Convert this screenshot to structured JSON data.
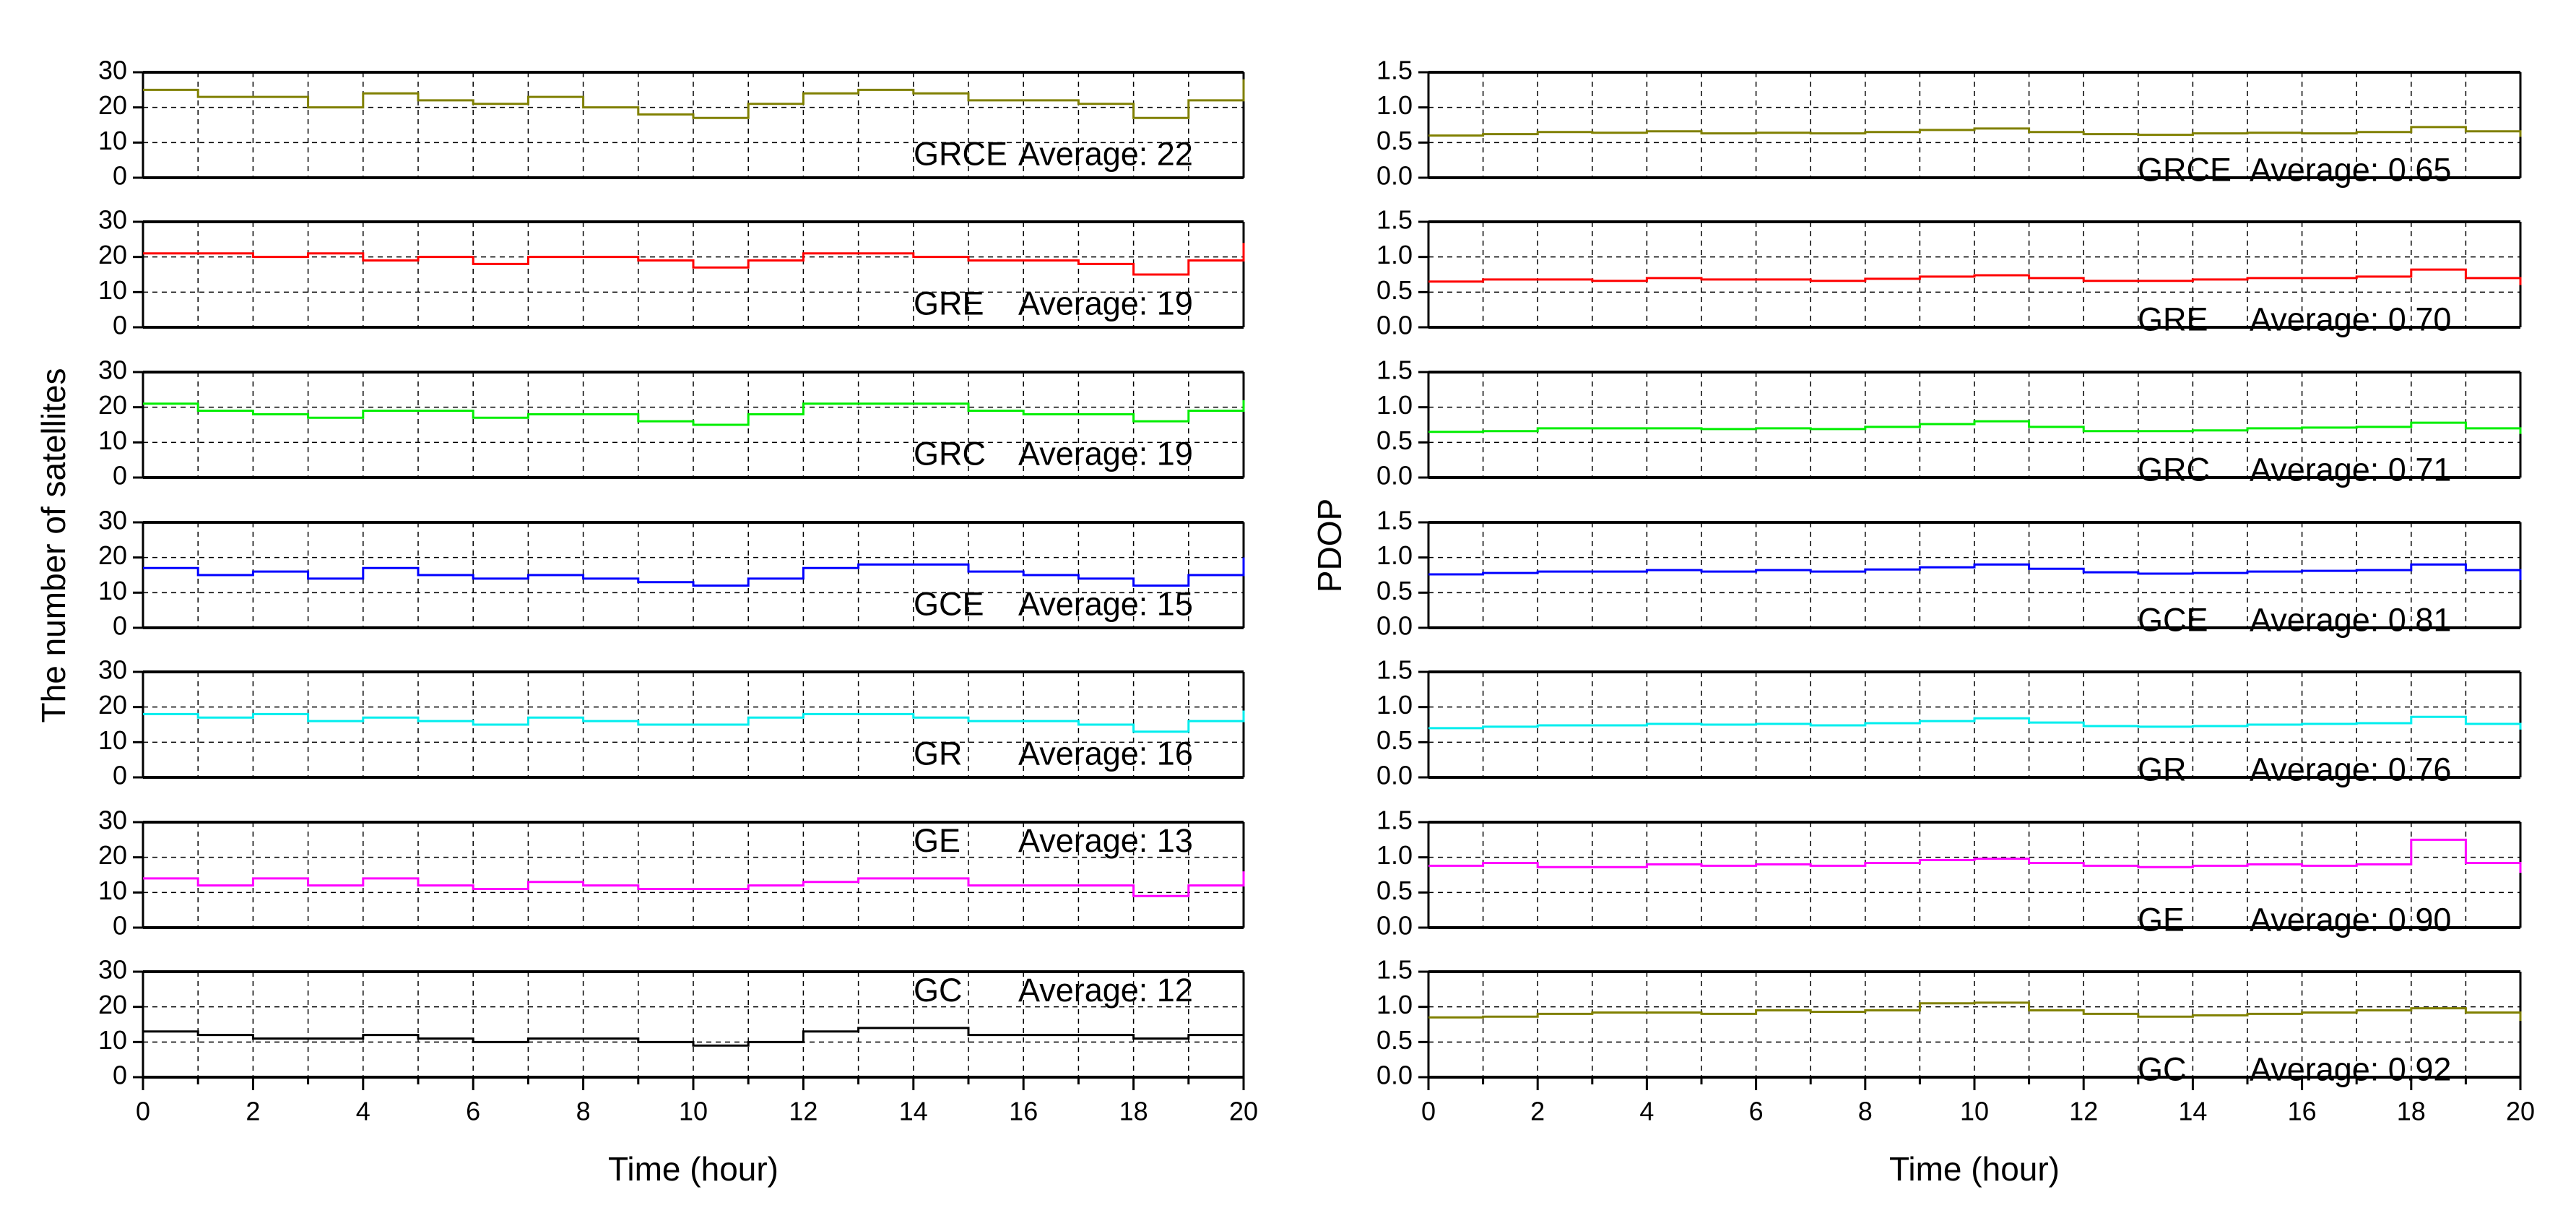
{
  "chart_data": [
    {
      "type": "line",
      "ylabel": "The number of satellites",
      "xlabel": "Time (hour)",
      "xlim": [
        0,
        20
      ],
      "x_ticks": [
        "0",
        "2",
        "4",
        "6",
        "8",
        "10",
        "12",
        "14",
        "16",
        "18",
        "20"
      ],
      "ylim": [
        0,
        30
      ],
      "y_ticks": [
        "0",
        "10",
        "20",
        "30"
      ],
      "panels": [
        {
          "system": "GRCE",
          "color": "#808000",
          "average_text": "Average: 22",
          "average": 22,
          "x": [
            0,
            1,
            2,
            3,
            4,
            5,
            6,
            7,
            8,
            9,
            10,
            11,
            12,
            13,
            14,
            15,
            16,
            17,
            18,
            19,
            20
          ],
          "values": [
            25,
            23,
            23,
            20,
            24,
            22,
            21,
            23,
            20,
            18,
            17,
            21,
            24,
            25,
            24,
            22,
            22,
            21,
            17,
            22,
            28
          ]
        },
        {
          "system": "GRE",
          "color": "#ff0000",
          "average_text": "Average: 19",
          "average": 19,
          "x": [
            0,
            1,
            2,
            3,
            4,
            5,
            6,
            7,
            8,
            9,
            10,
            11,
            12,
            13,
            14,
            15,
            16,
            17,
            18,
            19,
            20
          ],
          "values": [
            21,
            21,
            20,
            21,
            19,
            20,
            18,
            20,
            20,
            19,
            17,
            19,
            21,
            21,
            20,
            19,
            19,
            18,
            15,
            19,
            24
          ]
        },
        {
          "system": "GRC",
          "color": "#00ee00",
          "average_text": "Average: 19",
          "average": 19,
          "x": [
            0,
            1,
            2,
            3,
            4,
            5,
            6,
            7,
            8,
            9,
            10,
            11,
            12,
            13,
            14,
            15,
            16,
            17,
            18,
            19,
            20
          ],
          "values": [
            21,
            19,
            18,
            17,
            19,
            19,
            17,
            18,
            18,
            16,
            15,
            18,
            21,
            21,
            21,
            19,
            18,
            18,
            16,
            19,
            22
          ]
        },
        {
          "system": "GCE",
          "color": "#0000ff",
          "average_text": "Average: 15",
          "average": 15,
          "x": [
            0,
            1,
            2,
            3,
            4,
            5,
            6,
            7,
            8,
            9,
            10,
            11,
            12,
            13,
            14,
            15,
            16,
            17,
            18,
            19,
            20
          ],
          "values": [
            17,
            15,
            16,
            14,
            17,
            15,
            14,
            15,
            14,
            13,
            12,
            14,
            17,
            18,
            18,
            16,
            15,
            14,
            12,
            15,
            20
          ]
        },
        {
          "system": "GR",
          "color": "#00eeee",
          "average_text": "Average: 16",
          "average": 16,
          "x": [
            0,
            1,
            2,
            3,
            4,
            5,
            6,
            7,
            8,
            9,
            10,
            11,
            12,
            13,
            14,
            15,
            16,
            17,
            18,
            19,
            20
          ],
          "values": [
            18,
            17,
            18,
            16,
            17,
            16,
            15,
            17,
            16,
            15,
            15,
            17,
            18,
            18,
            17,
            16,
            16,
            15,
            13,
            16,
            19
          ]
        },
        {
          "system": "GE",
          "color": "#ff00ff",
          "average_text": "Average: 13",
          "average": 13,
          "x": [
            0,
            1,
            2,
            3,
            4,
            5,
            6,
            7,
            8,
            9,
            10,
            11,
            12,
            13,
            14,
            15,
            16,
            17,
            18,
            19,
            20
          ],
          "values": [
            14,
            12,
            14,
            12,
            14,
            12,
            11,
            13,
            12,
            11,
            11,
            12,
            13,
            14,
            14,
            12,
            12,
            12,
            9,
            12,
            16
          ]
        },
        {
          "system": "GC",
          "color": "#000000",
          "average_text": "Average: 12",
          "average": 12,
          "x": [
            0,
            1,
            2,
            3,
            4,
            5,
            6,
            7,
            8,
            9,
            10,
            11,
            12,
            13,
            14,
            15,
            16,
            17,
            18,
            19,
            20
          ],
          "values": [
            13,
            12,
            11,
            11,
            12,
            11,
            10,
            11,
            11,
            10,
            9,
            10,
            13,
            14,
            14,
            12,
            12,
            12,
            11,
            12,
            14
          ]
        }
      ]
    },
    {
      "type": "line",
      "ylabel": "PDOP",
      "xlabel": "Time (hour)",
      "xlim": [
        0,
        20
      ],
      "x_ticks": [
        "0",
        "2",
        "4",
        "6",
        "8",
        "10",
        "12",
        "14",
        "16",
        "18",
        "20"
      ],
      "ylim": [
        0,
        1.5
      ],
      "y_ticks": [
        "0.0",
        "0.5",
        "1.0",
        "1.5"
      ],
      "panels": [
        {
          "system": "GRCE",
          "color": "#808000",
          "average_text": "Average: 0.65",
          "average": 0.65,
          "x": [
            0,
            1,
            2,
            3,
            4,
            5,
            6,
            7,
            8,
            9,
            10,
            11,
            12,
            13,
            14,
            15,
            16,
            17,
            18,
            19,
            20
          ],
          "values": [
            0.6,
            0.62,
            0.65,
            0.64,
            0.66,
            0.63,
            0.64,
            0.63,
            0.65,
            0.68,
            0.7,
            0.65,
            0.62,
            0.61,
            0.63,
            0.64,
            0.63,
            0.65,
            0.72,
            0.66,
            0.58
          ]
        },
        {
          "system": "GRE",
          "color": "#ff0000",
          "average_text": "Average: 0.70",
          "average": 0.7,
          "x": [
            0,
            1,
            2,
            3,
            4,
            5,
            6,
            7,
            8,
            9,
            10,
            11,
            12,
            13,
            14,
            15,
            16,
            17,
            18,
            19,
            20
          ],
          "values": [
            0.65,
            0.68,
            0.68,
            0.66,
            0.7,
            0.68,
            0.68,
            0.66,
            0.69,
            0.72,
            0.74,
            0.7,
            0.66,
            0.66,
            0.68,
            0.7,
            0.7,
            0.72,
            0.82,
            0.7,
            0.6
          ]
        },
        {
          "system": "GRC",
          "color": "#00ee00",
          "average_text": "Average: 0.71",
          "average": 0.71,
          "x": [
            0,
            1,
            2,
            3,
            4,
            5,
            6,
            7,
            8,
            9,
            10,
            11,
            12,
            13,
            14,
            15,
            16,
            17,
            18,
            19,
            20
          ],
          "values": [
            0.65,
            0.66,
            0.7,
            0.7,
            0.7,
            0.69,
            0.7,
            0.69,
            0.72,
            0.76,
            0.8,
            0.72,
            0.66,
            0.66,
            0.67,
            0.7,
            0.71,
            0.72,
            0.78,
            0.7,
            0.62
          ]
        },
        {
          "system": "GCE",
          "color": "#0000ff",
          "average_text": "Average: 0.81",
          "average": 0.81,
          "x": [
            0,
            1,
            2,
            3,
            4,
            5,
            6,
            7,
            8,
            9,
            10,
            11,
            12,
            13,
            14,
            15,
            16,
            17,
            18,
            19,
            20
          ],
          "values": [
            0.76,
            0.78,
            0.8,
            0.8,
            0.82,
            0.8,
            0.82,
            0.8,
            0.83,
            0.86,
            0.9,
            0.84,
            0.79,
            0.77,
            0.78,
            0.8,
            0.81,
            0.82,
            0.9,
            0.82,
            0.68
          ]
        },
        {
          "system": "GR",
          "color": "#00eeee",
          "average_text": "Average: 0.76",
          "average": 0.76,
          "x": [
            0,
            1,
            2,
            3,
            4,
            5,
            6,
            7,
            8,
            9,
            10,
            11,
            12,
            13,
            14,
            15,
            16,
            17,
            18,
            19,
            20
          ],
          "values": [
            0.7,
            0.72,
            0.74,
            0.74,
            0.76,
            0.75,
            0.76,
            0.74,
            0.77,
            0.8,
            0.84,
            0.78,
            0.73,
            0.72,
            0.73,
            0.75,
            0.76,
            0.77,
            0.86,
            0.76,
            0.68
          ]
        },
        {
          "system": "GE",
          "color": "#ff00ff",
          "average_text": "Average: 0.90",
          "average": 0.9,
          "x": [
            0,
            1,
            2,
            3,
            4,
            5,
            6,
            7,
            8,
            9,
            10,
            11,
            12,
            13,
            14,
            15,
            16,
            17,
            18,
            19,
            20
          ],
          "values": [
            0.88,
            0.92,
            0.86,
            0.86,
            0.9,
            0.88,
            0.9,
            0.88,
            0.92,
            0.96,
            0.98,
            0.92,
            0.88,
            0.86,
            0.88,
            0.9,
            0.88,
            0.9,
            1.25,
            0.92,
            0.78
          ]
        },
        {
          "system": "GC",
          "color": "#808000",
          "average_text": "Average: 0.92",
          "average": 0.92,
          "x": [
            0,
            1,
            2,
            3,
            4,
            5,
            6,
            7,
            8,
            9,
            10,
            11,
            12,
            13,
            14,
            15,
            16,
            17,
            18,
            19,
            20
          ],
          "values": [
            0.85,
            0.86,
            0.9,
            0.92,
            0.92,
            0.9,
            0.95,
            0.93,
            0.95,
            1.05,
            1.06,
            0.95,
            0.9,
            0.86,
            0.88,
            0.9,
            0.92,
            0.95,
            0.98,
            0.92,
            0.8
          ]
        }
      ]
    }
  ]
}
